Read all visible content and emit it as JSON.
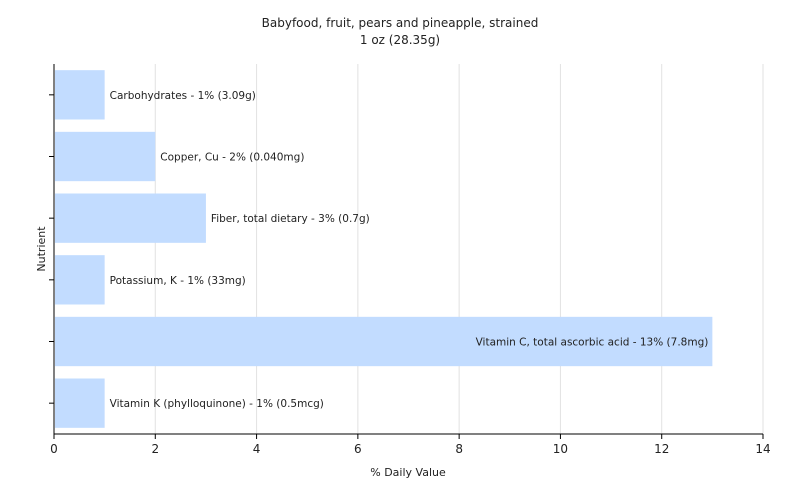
{
  "chart_data": {
    "type": "bar",
    "orientation": "horizontal",
    "title": "Babyfood, fruit, pears and pineapple, strained",
    "subtitle": "1 oz (28.35g)",
    "xlabel": "% Daily Value",
    "ylabel": "Nutrient",
    "xlim": [
      0,
      14
    ],
    "xticks": [
      0,
      2,
      4,
      6,
      8,
      10,
      12,
      14
    ],
    "grid": true,
    "legend": "none",
    "bar_color": "#c2dcff",
    "categories": [
      "Carbohydrates",
      "Copper, Cu",
      "Fiber, total dietary",
      "Potassium, K",
      "Vitamin C, total ascorbic acid",
      "Vitamin K (phylloquinone)"
    ],
    "values": [
      1,
      2,
      3,
      1,
      13,
      1
    ],
    "labels": [
      "Carbohydrates - 1% (3.09g)",
      "Copper, Cu - 2% (0.040mg)",
      "Fiber, total dietary - 3% (0.7g)",
      "Potassium, K - 1% (33mg)",
      "Vitamin C, total ascorbic acid - 13% (7.8mg)",
      "Vitamin K (phylloquinone) - 1% (0.5mcg)"
    ]
  }
}
